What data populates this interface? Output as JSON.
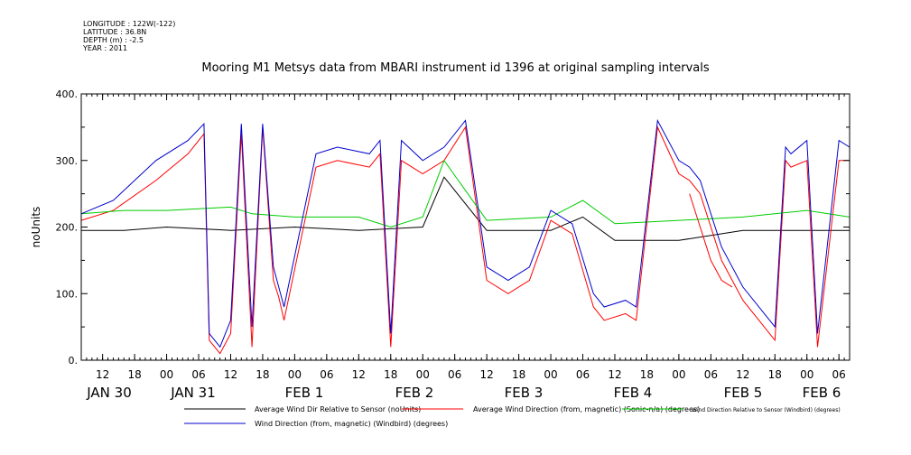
{
  "header": {
    "meta_lines": [
      "LONGITUDE : 122W(-122)",
      "LATITUDE : 36.8N",
      "DEPTH (m) : -2.5",
      "YEAR : 2011"
    ],
    "title": "Mooring M1 Metsys data from MBARI instrument id 1396 at original sampling intervals"
  },
  "chart_data": {
    "type": "line",
    "title": "Mooring M1 Metsys data from MBARI instrument id 1396 at original sampling intervals",
    "ylabel": "noUnits",
    "xlabel": "",
    "ylim": [
      0,
      400
    ],
    "y_ticks": [
      0,
      100,
      200,
      300,
      400
    ],
    "y_tick_labels": [
      "0.",
      "100.",
      "200.",
      "300.",
      "400."
    ],
    "x_unit": "hours since JAN 30 00:00",
    "xlim": [
      8,
      152
    ],
    "hour_ticks": [
      {
        "x": 12,
        "label": "12"
      },
      {
        "x": 18,
        "label": "18"
      },
      {
        "x": 24,
        "label": "00"
      },
      {
        "x": 30,
        "label": "06"
      },
      {
        "x": 36,
        "label": "12"
      },
      {
        "x": 42,
        "label": "18"
      },
      {
        "x": 48,
        "label": "00"
      },
      {
        "x": 54,
        "label": "06"
      },
      {
        "x": 60,
        "label": "12"
      },
      {
        "x": 66,
        "label": "18"
      },
      {
        "x": 72,
        "label": "00"
      },
      {
        "x": 78,
        "label": "06"
      },
      {
        "x": 84,
        "label": "12"
      },
      {
        "x": 90,
        "label": "18"
      },
      {
        "x": 96,
        "label": "00"
      },
      {
        "x": 102,
        "label": "06"
      },
      {
        "x": 108,
        "label": "12"
      },
      {
        "x": 114,
        "label": "18"
      },
      {
        "x": 120,
        "label": "00"
      },
      {
        "x": 126,
        "label": "06"
      },
      {
        "x": 132,
        "label": "12"
      },
      {
        "x": 138,
        "label": "18"
      },
      {
        "x": 144,
        "label": "00"
      },
      {
        "x": 150,
        "label": "06"
      }
    ],
    "day_labels": [
      {
        "x": 14,
        "label": "JAN 30"
      },
      {
        "x": 36,
        "label": "JAN 31"
      },
      {
        "x": 60,
        "label": "FEB  1"
      },
      {
        "x": 84,
        "label": "FEB  2"
      },
      {
        "x": 108,
        "label": "FEB  3"
      },
      {
        "x": 132,
        "label": "FEB  4"
      },
      {
        "x": 156,
        "label": "FEB  5"
      },
      {
        "x": 172,
        "label": "FEB  6"
      }
    ],
    "series": [
      {
        "name": "Average Wind Dir Relative to Sensor (noUnits)",
        "color": "#000000",
        "segments": [
          {
            "x": [
              8,
              16,
              24,
              36,
              48,
              60,
              72,
              76,
              84,
              96,
              102,
              108,
              120,
              132,
              144,
              152
            ],
            "y": [
              195,
              195,
              200,
              195,
              200,
              195,
              200,
              275,
              195,
              195,
              215,
              180,
              180,
              195,
              195,
              195
            ]
          }
        ]
      },
      {
        "name": "Average Wind Direction (from, magnetic) (Sonic-n/a) (degrees)",
        "color": "#ff0000",
        "segments": [
          {
            "x": [
              8,
              14,
              22,
              28,
              31,
              32,
              34,
              36,
              38,
              40,
              42,
              44,
              45,
              46,
              52,
              56,
              62,
              64,
              66,
              68,
              72,
              76,
              80,
              84,
              88,
              92,
              96,
              100,
              104,
              106,
              110,
              112,
              116,
              120,
              122,
              124,
              128,
              132,
              138,
              140,
              141,
              144,
              146,
              150,
              152
            ],
            "y": [
              210,
              225,
              270,
              310,
              340,
              30,
              10,
              40,
              340,
              20,
              350,
              120,
              95,
              60,
              290,
              300,
              290,
              310,
              20,
              300,
              280,
              300,
              350,
              120,
              100,
              120,
              210,
              190,
              80,
              60,
              70,
              60,
              350,
              280,
              270,
              250,
              150,
              90,
              30,
              300,
              290,
              300,
              20,
              300,
              300
            ]
          },
          {
            "x": [
              122,
              126,
              128,
              130
            ],
            "y": [
              250,
              150,
              120,
              110
            ]
          }
        ]
      },
      {
        "name": "Wind Direction Relative to Sensor (Windbird) (degrees)",
        "color": "#00cc00",
        "segments": [
          {
            "x": [
              8,
              16,
              24,
              36,
              40,
              48,
              60,
              66,
              72,
              76,
              84,
              96,
              102,
              108,
              120,
              132,
              144,
              152
            ],
            "y": [
              220,
              225,
              225,
              230,
              220,
              215,
              215,
              200,
              215,
              300,
              210,
              215,
              240,
              205,
              210,
              215,
              225,
              215
            ]
          }
        ]
      },
      {
        "name": "Wind Direction (from, magnetic) (Windbird) (degrees)",
        "color": "#0000cc",
        "segments": [
          {
            "x": [
              8,
              14,
              22,
              28,
              31,
              32,
              34,
              36,
              38,
              40,
              42,
              44,
              45,
              46,
              52,
              56,
              62,
              64,
              66,
              68,
              72,
              76,
              80,
              84,
              88,
              92,
              96,
              100,
              104,
              106,
              110,
              112,
              116,
              120,
              122,
              124,
              128,
              132,
              138,
              140,
              141,
              144,
              146,
              150,
              152
            ],
            "y": [
              220,
              240,
              300,
              330,
              355,
              40,
              20,
              60,
              355,
              50,
              355,
              140,
              110,
              80,
              310,
              320,
              310,
              330,
              40,
              330,
              300,
              320,
              360,
              140,
              120,
              140,
              225,
              205,
              100,
              80,
              90,
              80,
              360,
              300,
              290,
              270,
              170,
              110,
              50,
              320,
              310,
              330,
              40,
              330,
              320
            ]
          }
        ]
      }
    ],
    "legend_position": "bottom"
  }
}
